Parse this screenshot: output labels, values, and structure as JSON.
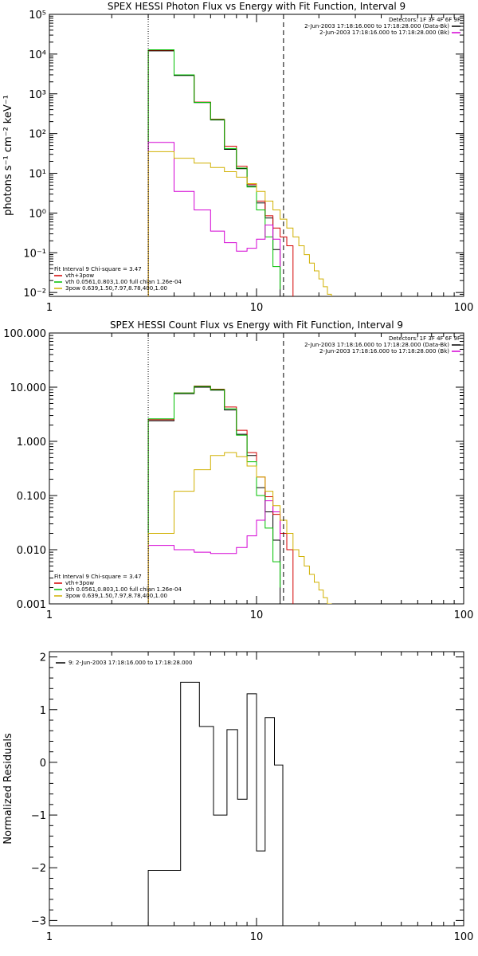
{
  "chart_data": [
    {
      "type": "line",
      "title": "SPEX HESSI Photon Flux vs Energy with Fit Function, Interval 9",
      "xlabel": "",
      "ylabel": "photons s⁻¹ cm⁻² keV⁻¹",
      "xscale": "log",
      "yscale": "log",
      "xlim": [
        1,
        100
      ],
      "ylim": [
        0.008,
        100000
      ],
      "xticks": [
        {
          "v": 1,
          "label": "1"
        },
        {
          "v": 10,
          "label": "10"
        },
        {
          "v": 100,
          "label": "100"
        }
      ],
      "yticks": [
        {
          "v": 0.01,
          "label": "10⁻²"
        },
        {
          "v": 0.1,
          "label": "10⁻¹"
        },
        {
          "v": 1,
          "label": "10⁰"
        },
        {
          "v": 10,
          "label": "10¹"
        },
        {
          "v": 100,
          "label": "10²"
        },
        {
          "v": 1000,
          "label": "10³"
        },
        {
          "v": 10000,
          "label": "10⁴"
        },
        {
          "v": 100000,
          "label": "10⁵"
        }
      ],
      "vlines": [
        {
          "x": 3.0,
          "style": "dotted"
        },
        {
          "x": 13.5,
          "style": "dashed"
        }
      ],
      "legend_topright": {
        "header": "Detectors: 1F 3F 4F 6F 9F",
        "lines": [
          {
            "text": "2-Jun-2003 17:18:16.000 to 17:18:28.000 (Data-Bk)",
            "color": "#000000"
          },
          {
            "text": "2-Jun-2003 17:18:16.000 to 17:18:28.000 (Bk)",
            "color": "#d400d4"
          }
        ]
      },
      "legend_bottomleft": {
        "header": "Fit Interval 9   Chi-square = 3.47",
        "lines": [
          {
            "text": "vth+3pow",
            "color": "#d40000"
          },
          {
            "text": "vth 0.0561,0.803,1.00  full chian 1.26e-04",
            "color": "#00c000"
          },
          {
            "text": "3pow 0.639,1.50,7.97,8.78,400,1.00",
            "color": "#d0b000"
          }
        ]
      },
      "series": [
        {
          "color": "#000000",
          "edges": [
            3.0,
            4.0,
            5.0,
            6.0,
            7.0,
            8.0,
            9.0,
            10.0,
            11.0,
            12.0,
            13.0
          ],
          "values": [
            12000,
            2900,
            600,
            220,
            40,
            13,
            4.8,
            1.8,
            0.75,
            0.12
          ]
        },
        {
          "color": "#d40000",
          "edges": [
            3.0,
            4.0,
            5.0,
            6.0,
            7.0,
            8.0,
            9.0,
            10.0,
            11.0,
            12.0,
            13.0,
            14.0,
            15.0
          ],
          "values": [
            12500,
            3000,
            620,
            230,
            48,
            15,
            5.3,
            2.0,
            0.85,
            0.42,
            0.25,
            0.15
          ]
        },
        {
          "color": "#00c000",
          "edges": [
            3.0,
            4.0,
            5.0,
            6.0,
            7.0,
            8.0,
            9.0,
            10.0,
            11.0,
            12.0,
            13.0
          ],
          "values": [
            12800,
            3000,
            610,
            225,
            42,
            13.5,
            4.5,
            1.2,
            0.25,
            0.045,
            0.012
          ]
        },
        {
          "color": "#d400d4",
          "edges": [
            3.0,
            4.0,
            5.0,
            6.0,
            7.0,
            8.0,
            9.0,
            10.0,
            11.0,
            12.0,
            13.0
          ],
          "values": [
            60,
            3.5,
            1.2,
            0.35,
            0.18,
            0.11,
            0.13,
            0.22,
            0.5,
            0.22,
            0.045
          ]
        },
        {
          "color": "#d0b000",
          "edges": [
            3.0,
            4.0,
            5.0,
            6.0,
            7.0,
            8.0,
            9.0,
            10.0,
            11.0,
            12.0,
            13.0,
            14.0,
            15.0,
            16.0,
            17.0,
            18.0,
            19.0,
            20.0,
            21.0,
            22.0,
            23.0
          ],
          "values": [
            35,
            24,
            18,
            14,
            11,
            8,
            5.5,
            3.5,
            2.0,
            1.2,
            0.7,
            0.42,
            0.25,
            0.15,
            0.09,
            0.055,
            0.035,
            0.022,
            0.014,
            0.009
          ]
        }
      ]
    },
    {
      "type": "line",
      "title": "SPEX HESSI Count Flux vs Energy with Fit Function, Interval 9",
      "xlabel": "",
      "ylabel": "",
      "xscale": "log",
      "yscale": "log",
      "xlim": [
        1,
        100
      ],
      "ylim": [
        0.001,
        100
      ],
      "xticks": [
        {
          "v": 1,
          "label": "1"
        },
        {
          "v": 10,
          "label": "10"
        },
        {
          "v": 100,
          "label": "100"
        }
      ],
      "yticks": [
        {
          "v": 0.001,
          "label": "0.001"
        },
        {
          "v": 0.01,
          "label": "0.010"
        },
        {
          "v": 0.1,
          "label": "0.100"
        },
        {
          "v": 1,
          "label": "1.000"
        },
        {
          "v": 10,
          "label": "10.000"
        },
        {
          "v": 100,
          "label": "100.000"
        }
      ],
      "vlines": [
        {
          "x": 3.0,
          "style": "dotted"
        },
        {
          "x": 13.5,
          "style": "dashed"
        }
      ],
      "legend_topright": {
        "header": "Detectors: 1F 3F 4F 6F 9F",
        "lines": [
          {
            "text": "2-Jun-2003 17:18:16.000 to 17:18:28.000 (Data-Bk)",
            "color": "#000000"
          },
          {
            "text": "2-Jun-2003 17:18:16.000 to 17:18:28.000 (Bk)",
            "color": "#d400d4"
          }
        ]
      },
      "legend_bottomleft": {
        "header": "Fit Interval 9   Chi-square = 3.47",
        "lines": [
          {
            "text": "vth+3pow",
            "color": "#d40000"
          },
          {
            "text": "vth 0.0561,0.803,1.00  full chian 1.26e-04",
            "color": "#00c000"
          },
          {
            "text": "3pow 0.639,1.50,7.97,8.78,400,1.00",
            "color": "#d0b000"
          }
        ]
      },
      "series": [
        {
          "color": "#000000",
          "edges": [
            3.0,
            4.0,
            5.0,
            6.0,
            7.0,
            8.0,
            9.0,
            10.0,
            11.0,
            12.0,
            13.0
          ],
          "values": [
            2.4,
            7.6,
            10.0,
            8.8,
            3.8,
            1.35,
            0.55,
            0.14,
            0.05,
            0.015
          ]
        },
        {
          "color": "#d40000",
          "edges": [
            3.0,
            4.0,
            5.0,
            6.0,
            7.0,
            8.0,
            9.0,
            10.0,
            11.0,
            12.0,
            13.0,
            14.0,
            15.0
          ],
          "values": [
            2.5,
            7.8,
            10.5,
            9.2,
            4.3,
            1.6,
            0.62,
            0.22,
            0.095,
            0.045,
            0.02,
            0.01
          ]
        },
        {
          "color": "#00c000",
          "edges": [
            3.0,
            4.0,
            5.0,
            6.0,
            7.0,
            8.0,
            9.0,
            10.0,
            11.0,
            12.0,
            13.0
          ],
          "values": [
            2.6,
            7.8,
            10.3,
            9.0,
            4.0,
            1.3,
            0.42,
            0.1,
            0.025,
            0.006,
            0.002
          ]
        },
        {
          "color": "#d400d4",
          "edges": [
            3.0,
            4.0,
            5.0,
            6.0,
            7.0,
            8.0,
            9.0,
            10.0,
            11.0,
            12.0,
            13.0
          ],
          "values": [
            0.012,
            0.01,
            0.009,
            0.0085,
            0.0085,
            0.011,
            0.018,
            0.035,
            0.08,
            0.05,
            0.015
          ]
        },
        {
          "color": "#d0b000",
          "edges": [
            3.0,
            4.0,
            5.0,
            6.0,
            7.0,
            8.0,
            9.0,
            10.0,
            11.0,
            12.0,
            13.0,
            14.0,
            15.0,
            16.0,
            17.0,
            18.0,
            19.0,
            20.0,
            21.0,
            22.0,
            23.0
          ],
          "values": [
            0.02,
            0.12,
            0.3,
            0.55,
            0.62,
            0.52,
            0.35,
            0.22,
            0.12,
            0.065,
            0.035,
            0.02,
            0.01,
            0.0075,
            0.005,
            0.0035,
            0.0025,
            0.0018,
            0.0013,
            0.0009
          ]
        }
      ]
    },
    {
      "type": "line",
      "title": "",
      "xlabel": "",
      "ylabel": "Normalized Residuals",
      "xscale": "log",
      "yscale": "linear",
      "xlim": [
        1,
        100
      ],
      "ylim": [
        -3.1,
        2.1
      ],
      "xticks": [
        {
          "v": 1,
          "label": "1"
        },
        {
          "v": 10,
          "label": "10"
        },
        {
          "v": 100,
          "label": "100"
        }
      ],
      "yticks": [
        {
          "v": -3,
          "label": "−3"
        },
        {
          "v": -2,
          "label": "−2"
        },
        {
          "v": -1,
          "label": "−1"
        },
        {
          "v": 0,
          "label": "0"
        },
        {
          "v": 1,
          "label": "1"
        },
        {
          "v": 2,
          "label": "2"
        }
      ],
      "vlines": [],
      "legend_topleft": {
        "lines": [
          {
            "text": "9:  2-Jun-2003 17:18:16.000 to 17:18:28.000",
            "color": "#000000"
          }
        ]
      },
      "series": [
        {
          "color": "#000000",
          "edges": [
            3.0,
            4.3,
            5.3,
            6.2,
            7.2,
            8.1,
            9.0,
            10.0,
            11.0,
            12.2,
            13.4
          ],
          "values": [
            -2.05,
            1.52,
            0.68,
            -1.0,
            0.62,
            -0.7,
            1.3,
            -1.68,
            0.85,
            -0.05
          ],
          "start_from_bottom": true,
          "end_to_bottom": true
        }
      ]
    }
  ]
}
